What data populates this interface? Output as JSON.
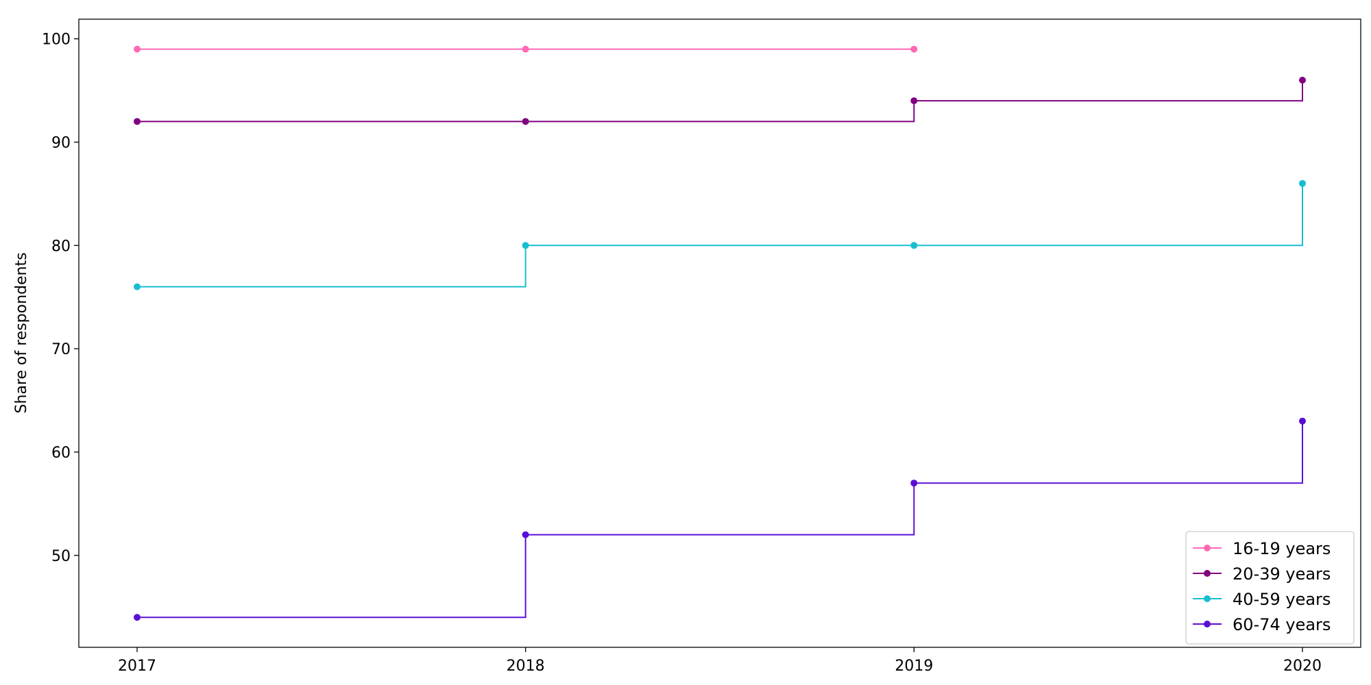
{
  "chart_data": {
    "type": "line",
    "step": "post",
    "x": [
      2017,
      2018,
      2019,
      2020
    ],
    "xticks": [
      "2017",
      "2018",
      "2019",
      "2020"
    ],
    "yticks": [
      "50",
      "60",
      "70",
      "80",
      "90",
      "100"
    ],
    "xlabel": "",
    "ylabel": "Share of respondents",
    "xlim": [
      2016.85,
      2020.15
    ],
    "ylim": [
      41.1,
      101.9
    ],
    "grid": false,
    "legend": "lower-right",
    "series": [
      {
        "name": "16-19 years",
        "color": "#ff69b4",
        "values": [
          99,
          99,
          99,
          null
        ]
      },
      {
        "name": "20-39 years",
        "color": "#800080",
        "values": [
          92,
          92,
          94,
          96
        ]
      },
      {
        "name": "40-59 years",
        "color": "#17becf",
        "values": [
          76,
          80,
          80,
          86
        ]
      },
      {
        "name": "60-74 years",
        "color": "#5a0fd6",
        "values": [
          44,
          52,
          57,
          63
        ]
      }
    ]
  }
}
